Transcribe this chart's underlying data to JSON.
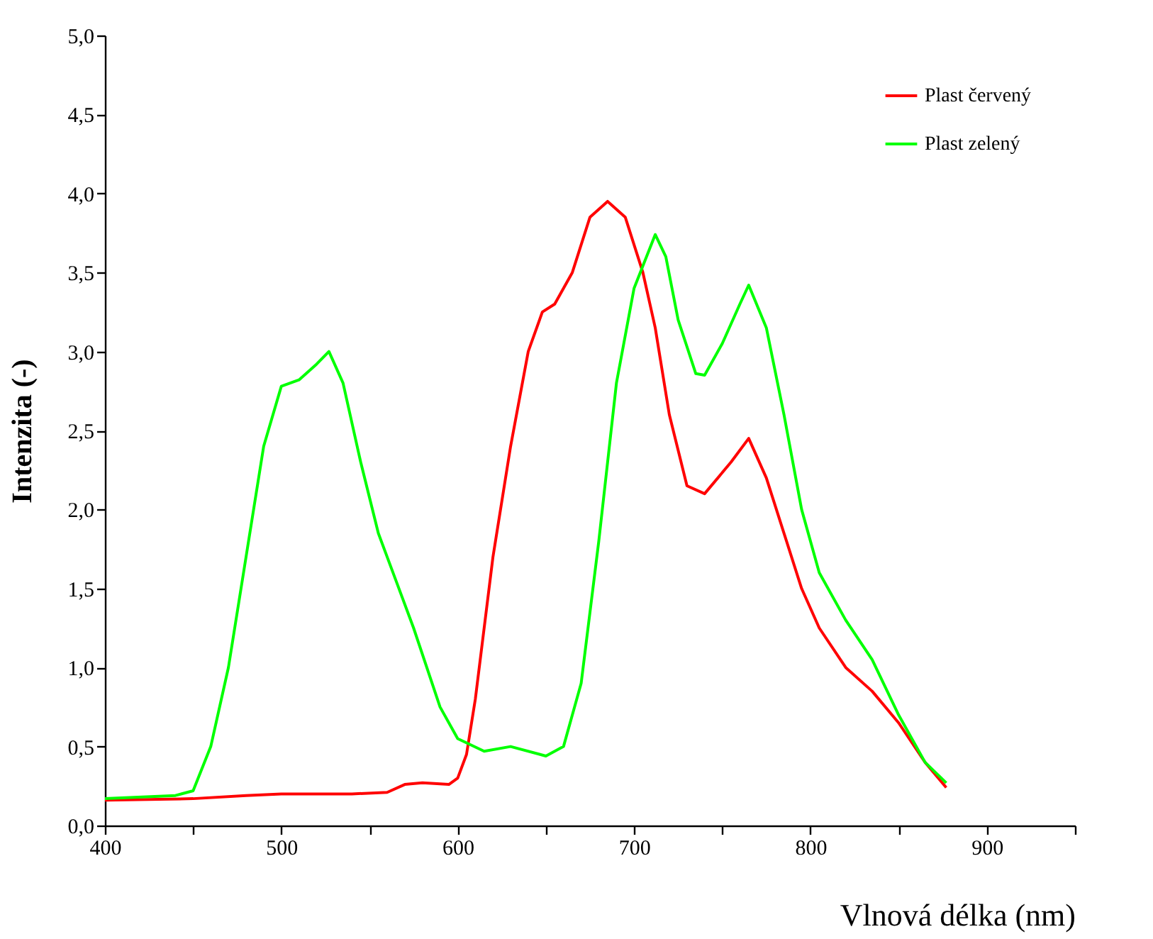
{
  "chart_data": {
    "type": "line",
    "xlabel": "Vlnová délka (nm)",
    "ylabel": "Intenzita (-)",
    "legend": "top right",
    "grid": false,
    "marker": "none",
    "line_style": "solid",
    "xlim": [
      400,
      950
    ],
    "xticks": [
      400,
      {
        "value": 450,
        "label": null
      },
      500,
      {
        "value": 550,
        "label": null
      },
      600,
      {
        "value": 650,
        "label": null
      },
      700,
      {
        "value": 750,
        "label": null
      },
      800,
      {
        "value": 850,
        "label": null
      },
      900,
      {
        "value": 950,
        "label": null
      }
    ],
    "ylim": [
      0,
      5
    ],
    "yticks": [
      {
        "value": 0,
        "label": "0,0"
      },
      {
        "value": 0.5,
        "label": "0,5"
      },
      {
        "value": 1,
        "label": "1,0"
      },
      {
        "value": 1.5,
        "label": "1,5"
      },
      {
        "value": 2,
        "label": "2,0"
      },
      {
        "value": 2.5,
        "label": "2,5"
      },
      {
        "value": 3,
        "label": "3,0"
      },
      {
        "value": 3.5,
        "label": "3,5"
      },
      {
        "value": 4,
        "label": "4,0"
      },
      {
        "value": 4.5,
        "label": "4,5"
      },
      {
        "value": 5,
        "label": "5,0"
      }
    ],
    "series": [
      {
        "name": "Plast červený",
        "color": "#ff0000",
        "x": [
          400,
          450,
          480,
          500,
          540,
          560,
          570,
          580,
          595,
          600,
          605,
          610,
          620,
          630,
          640,
          648,
          655,
          665,
          675,
          685,
          695,
          705,
          712,
          720,
          730,
          740,
          755,
          765,
          775,
          785,
          795,
          805,
          820,
          835,
          850,
          865,
          877
        ],
        "values": [
          0.16,
          0.17,
          0.19,
          0.2,
          0.2,
          0.21,
          0.26,
          0.27,
          0.26,
          0.3,
          0.45,
          0.8,
          1.7,
          2.4,
          3.0,
          3.25,
          3.3,
          3.5,
          3.85,
          3.95,
          3.85,
          3.5,
          3.15,
          2.6,
          2.15,
          2.1,
          2.3,
          2.45,
          2.2,
          1.85,
          1.5,
          1.25,
          1.0,
          0.85,
          0.65,
          0.4,
          0.24
        ]
      },
      {
        "name": "Plast zelený",
        "color": "#00ff00",
        "x": [
          400,
          440,
          450,
          460,
          470,
          480,
          490,
          500,
          510,
          520,
          527,
          535,
          545,
          555,
          565,
          575,
          590,
          600,
          615,
          630,
          650,
          660,
          670,
          680,
          690,
          700,
          712,
          718,
          725,
          735,
          740,
          750,
          760,
          765,
          775,
          785,
          795,
          805,
          820,
          835,
          850,
          865,
          877
        ],
        "values": [
          0.17,
          0.19,
          0.22,
          0.5,
          1.0,
          1.7,
          2.4,
          2.78,
          2.82,
          2.92,
          3.0,
          2.8,
          2.3,
          1.85,
          1.55,
          1.25,
          0.75,
          0.55,
          0.47,
          0.5,
          0.44,
          0.5,
          0.9,
          1.8,
          2.8,
          3.4,
          3.74,
          3.6,
          3.2,
          2.86,
          2.85,
          3.05,
          3.3,
          3.42,
          3.15,
          2.6,
          2.0,
          1.6,
          1.3,
          1.05,
          0.7,
          0.4,
          0.27
        ]
      }
    ]
  }
}
